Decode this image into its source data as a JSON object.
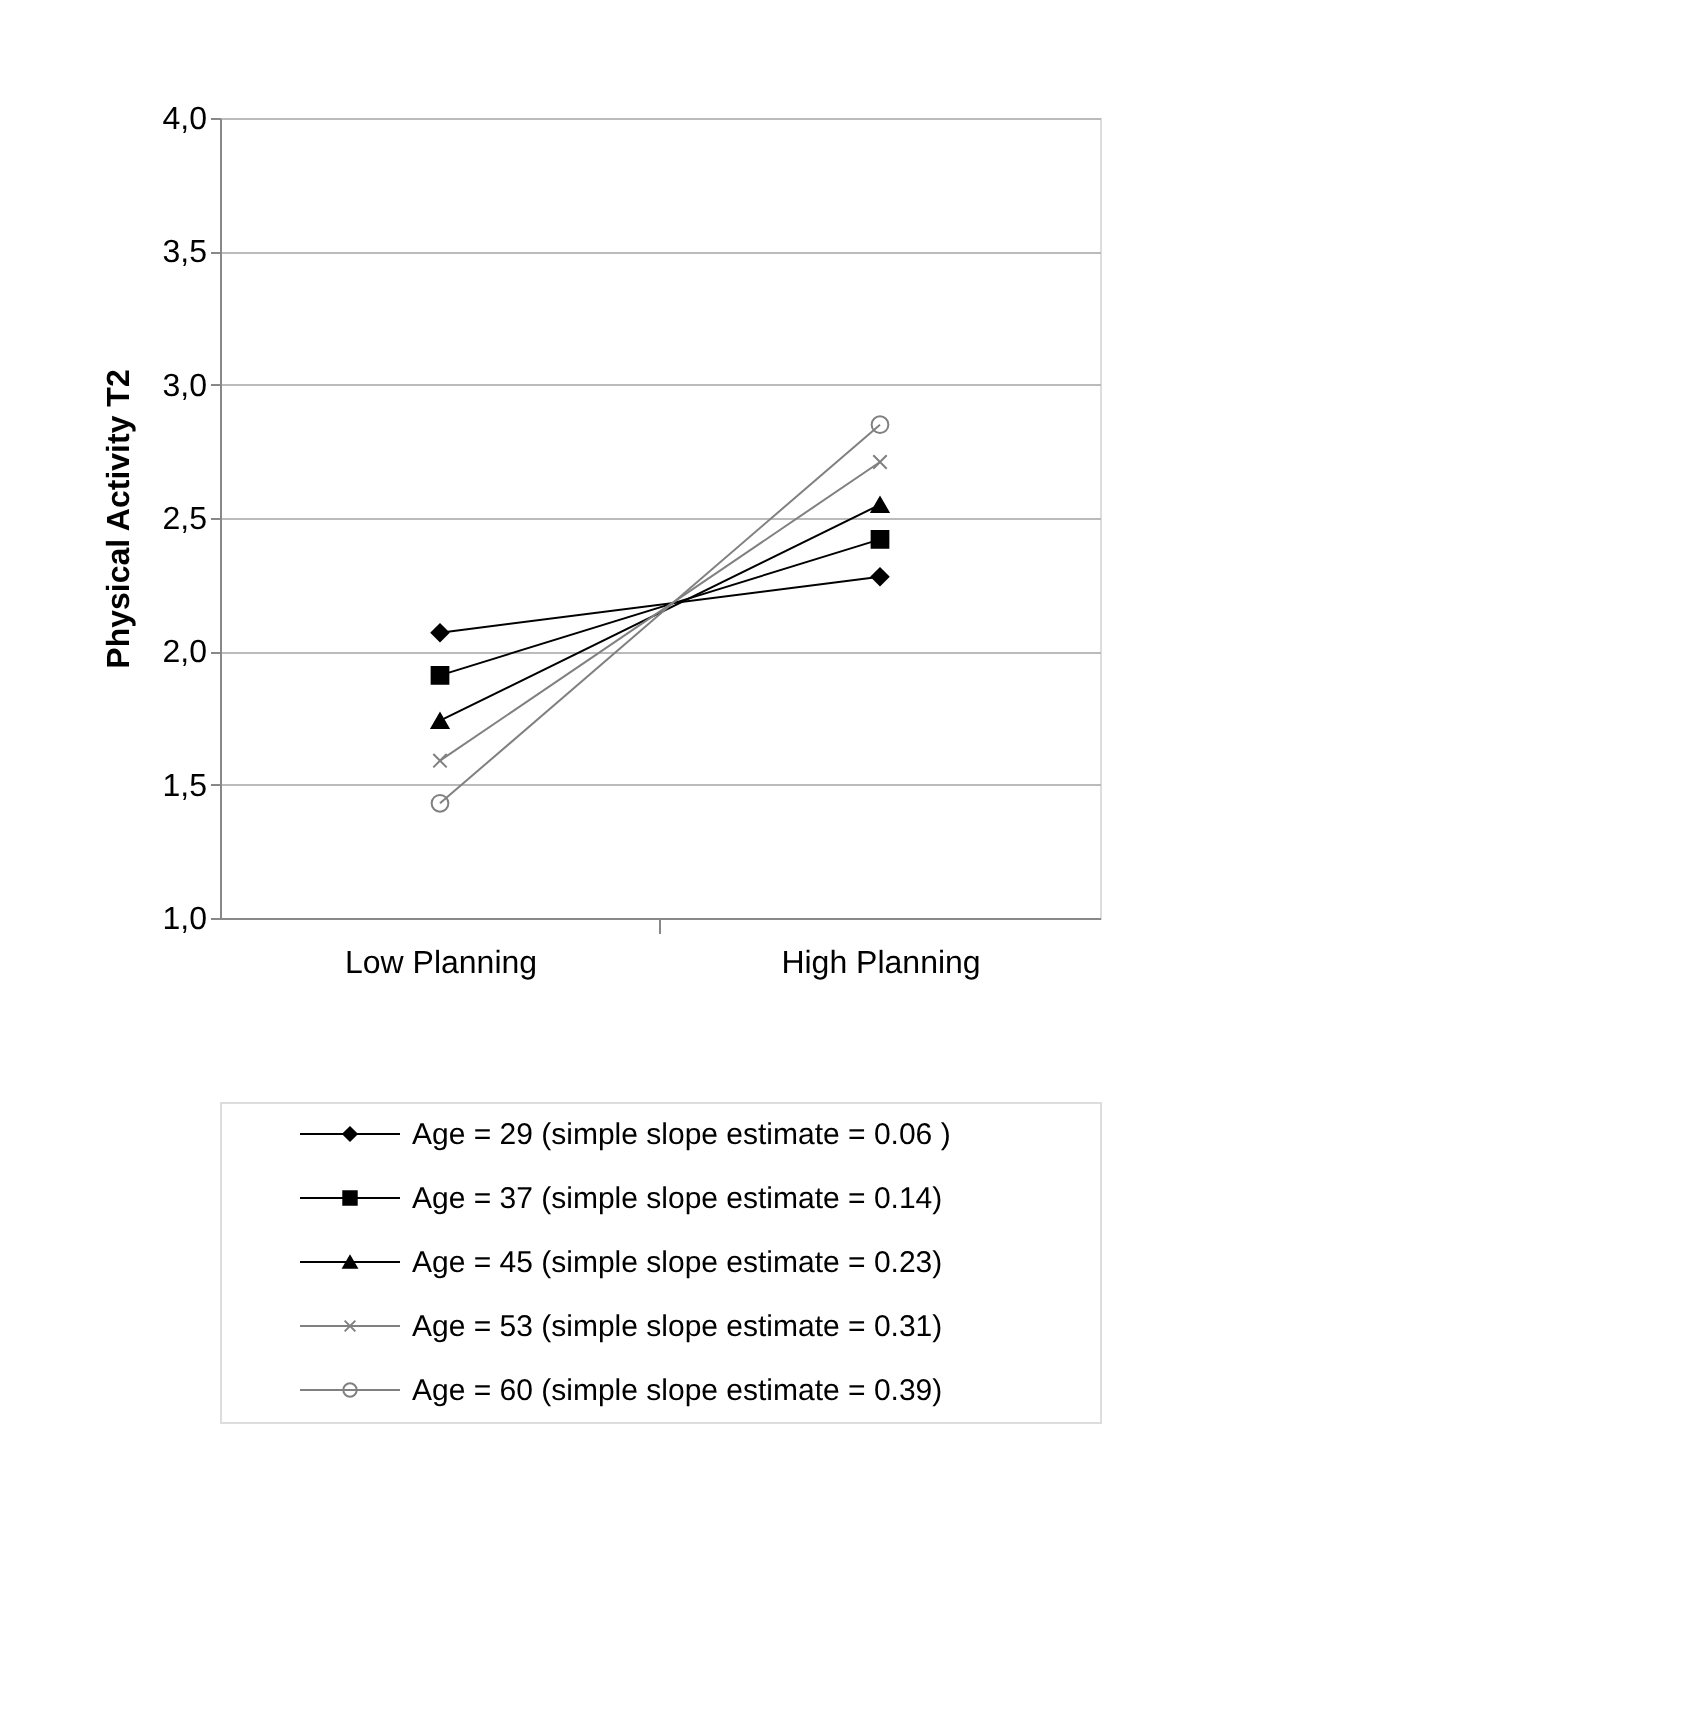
{
  "chart_data": {
    "type": "line",
    "ylabel": "Physical Activity T2",
    "categories": [
      "Low Planning",
      "High Planning"
    ],
    "series": [
      {
        "name": "Age = 29 (simple slope estimate = 0.06 )",
        "color": "#000000",
        "marker": "diamond",
        "values": [
          2.07,
          2.28
        ]
      },
      {
        "name": "Age = 37 (simple slope estimate = 0.14)",
        "color": "#000000",
        "marker": "square",
        "values": [
          1.91,
          2.42
        ]
      },
      {
        "name": "Age = 45 (simple slope estimate = 0.23)",
        "color": "#000000",
        "marker": "triangle",
        "values": [
          1.74,
          2.55
        ]
      },
      {
        "name": "Age = 53 (simple slope estimate = 0.31)",
        "color": "#808080",
        "marker": "cross",
        "values": [
          1.59,
          2.71
        ]
      },
      {
        "name": "Age = 60 (simple slope estimate = 0.39)",
        "color": "#808080",
        "marker": "circle",
        "values": [
          1.43,
          2.85
        ]
      }
    ],
    "ylim": [
      1.0,
      4.0
    ],
    "yticks": [
      {
        "value": 1.0,
        "label": "1,0"
      },
      {
        "value": 1.5,
        "label": "1,5"
      },
      {
        "value": 2.0,
        "label": "2,0"
      },
      {
        "value": 2.5,
        "label": "2,5"
      },
      {
        "value": 3.0,
        "label": "3,0"
      },
      {
        "value": 3.5,
        "label": "3,5"
      },
      {
        "value": 4.0,
        "label": "4,0"
      }
    ],
    "grid": "y",
    "legend": "bottom",
    "line_style": "solid"
  }
}
